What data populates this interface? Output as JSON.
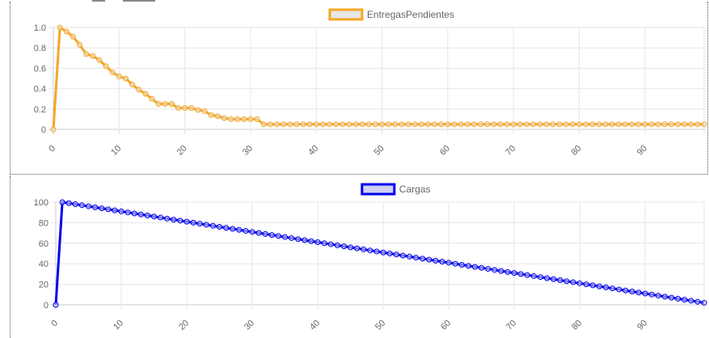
{
  "chart_data": [
    {
      "type": "line",
      "legend": "EntregasPendientes",
      "color": "#f5a623",
      "fill": "#e6e6e6",
      "x": [
        0,
        1,
        2,
        3,
        4,
        5,
        6,
        7,
        8,
        9,
        10,
        11,
        12,
        13,
        14,
        15,
        16,
        17,
        18,
        19,
        20,
        21,
        22,
        23,
        24,
        25,
        26,
        27,
        28,
        29,
        30,
        31,
        32,
        33,
        34,
        35,
        36,
        37,
        38,
        39,
        40,
        41,
        42,
        43,
        44,
        45,
        46,
        47,
        48,
        49,
        50,
        51,
        52,
        53,
        54,
        55,
        56,
        57,
        58,
        59,
        60,
        61,
        62,
        63,
        64,
        65,
        66,
        67,
        68,
        69,
        70,
        71,
        72,
        73,
        74,
        75,
        76,
        77,
        78,
        79,
        80,
        81,
        82,
        83,
        84,
        85,
        86,
        87,
        88,
        89,
        90,
        91,
        92,
        93,
        94,
        95,
        96,
        97,
        98,
        99
      ],
      "values": [
        0,
        1.0,
        0.96,
        0.91,
        0.83,
        0.74,
        0.72,
        0.68,
        0.62,
        0.56,
        0.52,
        0.5,
        0.44,
        0.39,
        0.35,
        0.3,
        0.25,
        0.25,
        0.25,
        0.21,
        0.21,
        0.21,
        0.19,
        0.18,
        0.14,
        0.13,
        0.11,
        0.1,
        0.1,
        0.1,
        0.1,
        0.1,
        0.05,
        0.05,
        0.05,
        0.05,
        0.05,
        0.05,
        0.05,
        0.05,
        0.05,
        0.05,
        0.05,
        0.05,
        0.05,
        0.05,
        0.05,
        0.05,
        0.05,
        0.05,
        0.05,
        0.05,
        0.05,
        0.05,
        0.05,
        0.05,
        0.05,
        0.05,
        0.05,
        0.05,
        0.05,
        0.05,
        0.05,
        0.05,
        0.05,
        0.05,
        0.05,
        0.05,
        0.05,
        0.05,
        0.05,
        0.05,
        0.05,
        0.05,
        0.05,
        0.05,
        0.05,
        0.05,
        0.05,
        0.05,
        0.05,
        0.05,
        0.05,
        0.05,
        0.05,
        0.05,
        0.05,
        0.05,
        0.05,
        0.05,
        0.05,
        0.05,
        0.05,
        0.05,
        0.05,
        0.05,
        0.05,
        0.05,
        0.05,
        0.05
      ],
      "xlim": [
        0,
        99
      ],
      "ylim": [
        0,
        1.0
      ],
      "yticks": [
        "1.0",
        "0.8",
        "0.6",
        "0.4",
        "0.2",
        "0"
      ],
      "ytick_values": [
        1.0,
        0.8,
        0.6,
        0.4,
        0.2,
        0
      ],
      "xticks": [
        "0",
        "10",
        "20",
        "30",
        "40",
        "50",
        "60",
        "70",
        "80",
        "90"
      ],
      "xtick_values": [
        0,
        10,
        20,
        30,
        40,
        50,
        60,
        70,
        80,
        90
      ],
      "grid": true,
      "legend_position": "top-center"
    },
    {
      "type": "line",
      "legend": "Cargas",
      "color": "#0000ee",
      "fill": "#d0d0f0",
      "x": [
        0,
        1,
        2,
        3,
        4,
        5,
        6,
        7,
        8,
        9,
        10,
        11,
        12,
        13,
        14,
        15,
        16,
        17,
        18,
        19,
        20,
        21,
        22,
        23,
        24,
        25,
        26,
        27,
        28,
        29,
        30,
        31,
        32,
        33,
        34,
        35,
        36,
        37,
        38,
        39,
        40,
        41,
        42,
        43,
        44,
        45,
        46,
        47,
        48,
        49,
        50,
        51,
        52,
        53,
        54,
        55,
        56,
        57,
        58,
        59,
        60,
        61,
        62,
        63,
        64,
        65,
        66,
        67,
        68,
        69,
        70,
        71,
        72,
        73,
        74,
        75,
        76,
        77,
        78,
        79,
        80,
        81,
        82,
        83,
        84,
        85,
        86,
        87,
        88,
        89,
        90,
        91,
        92,
        93,
        94,
        95,
        96,
        97,
        98,
        99
      ],
      "values": [
        0,
        100,
        99,
        98,
        97,
        96,
        95,
        94,
        93,
        92,
        91,
        90,
        89,
        88,
        87,
        86,
        85,
        84,
        83,
        82,
        81,
        80,
        79,
        78,
        77,
        76,
        75,
        74,
        73,
        72,
        71,
        70,
        69,
        68,
        67,
        66,
        65,
        64,
        63,
        62,
        61,
        60,
        59,
        58,
        57,
        56,
        55,
        54,
        53,
        52,
        51,
        50,
        49,
        48,
        47,
        46,
        45,
        44,
        43,
        42,
        41,
        40,
        39,
        38,
        37,
        36,
        35,
        34,
        33,
        32,
        31,
        30,
        29,
        28,
        27,
        26,
        25,
        24,
        23,
        22,
        21,
        20,
        19,
        18,
        17,
        16,
        15,
        14,
        13,
        12,
        11,
        10,
        9,
        8,
        7,
        6,
        5,
        4,
        3,
        2
      ],
      "xlim": [
        0,
        99
      ],
      "ylim": [
        0,
        100
      ],
      "yticks": [
        "100",
        "80",
        "60",
        "40",
        "20",
        "0"
      ],
      "ytick_values": [
        100,
        80,
        60,
        40,
        20,
        0
      ],
      "xticks": [
        "0",
        "10",
        "20",
        "30",
        "40",
        "50",
        "60",
        "70",
        "80",
        "90"
      ],
      "xtick_values": [
        0,
        10,
        20,
        30,
        40,
        50,
        60,
        70,
        80,
        90
      ],
      "grid": true,
      "legend_position": "top-center"
    }
  ]
}
